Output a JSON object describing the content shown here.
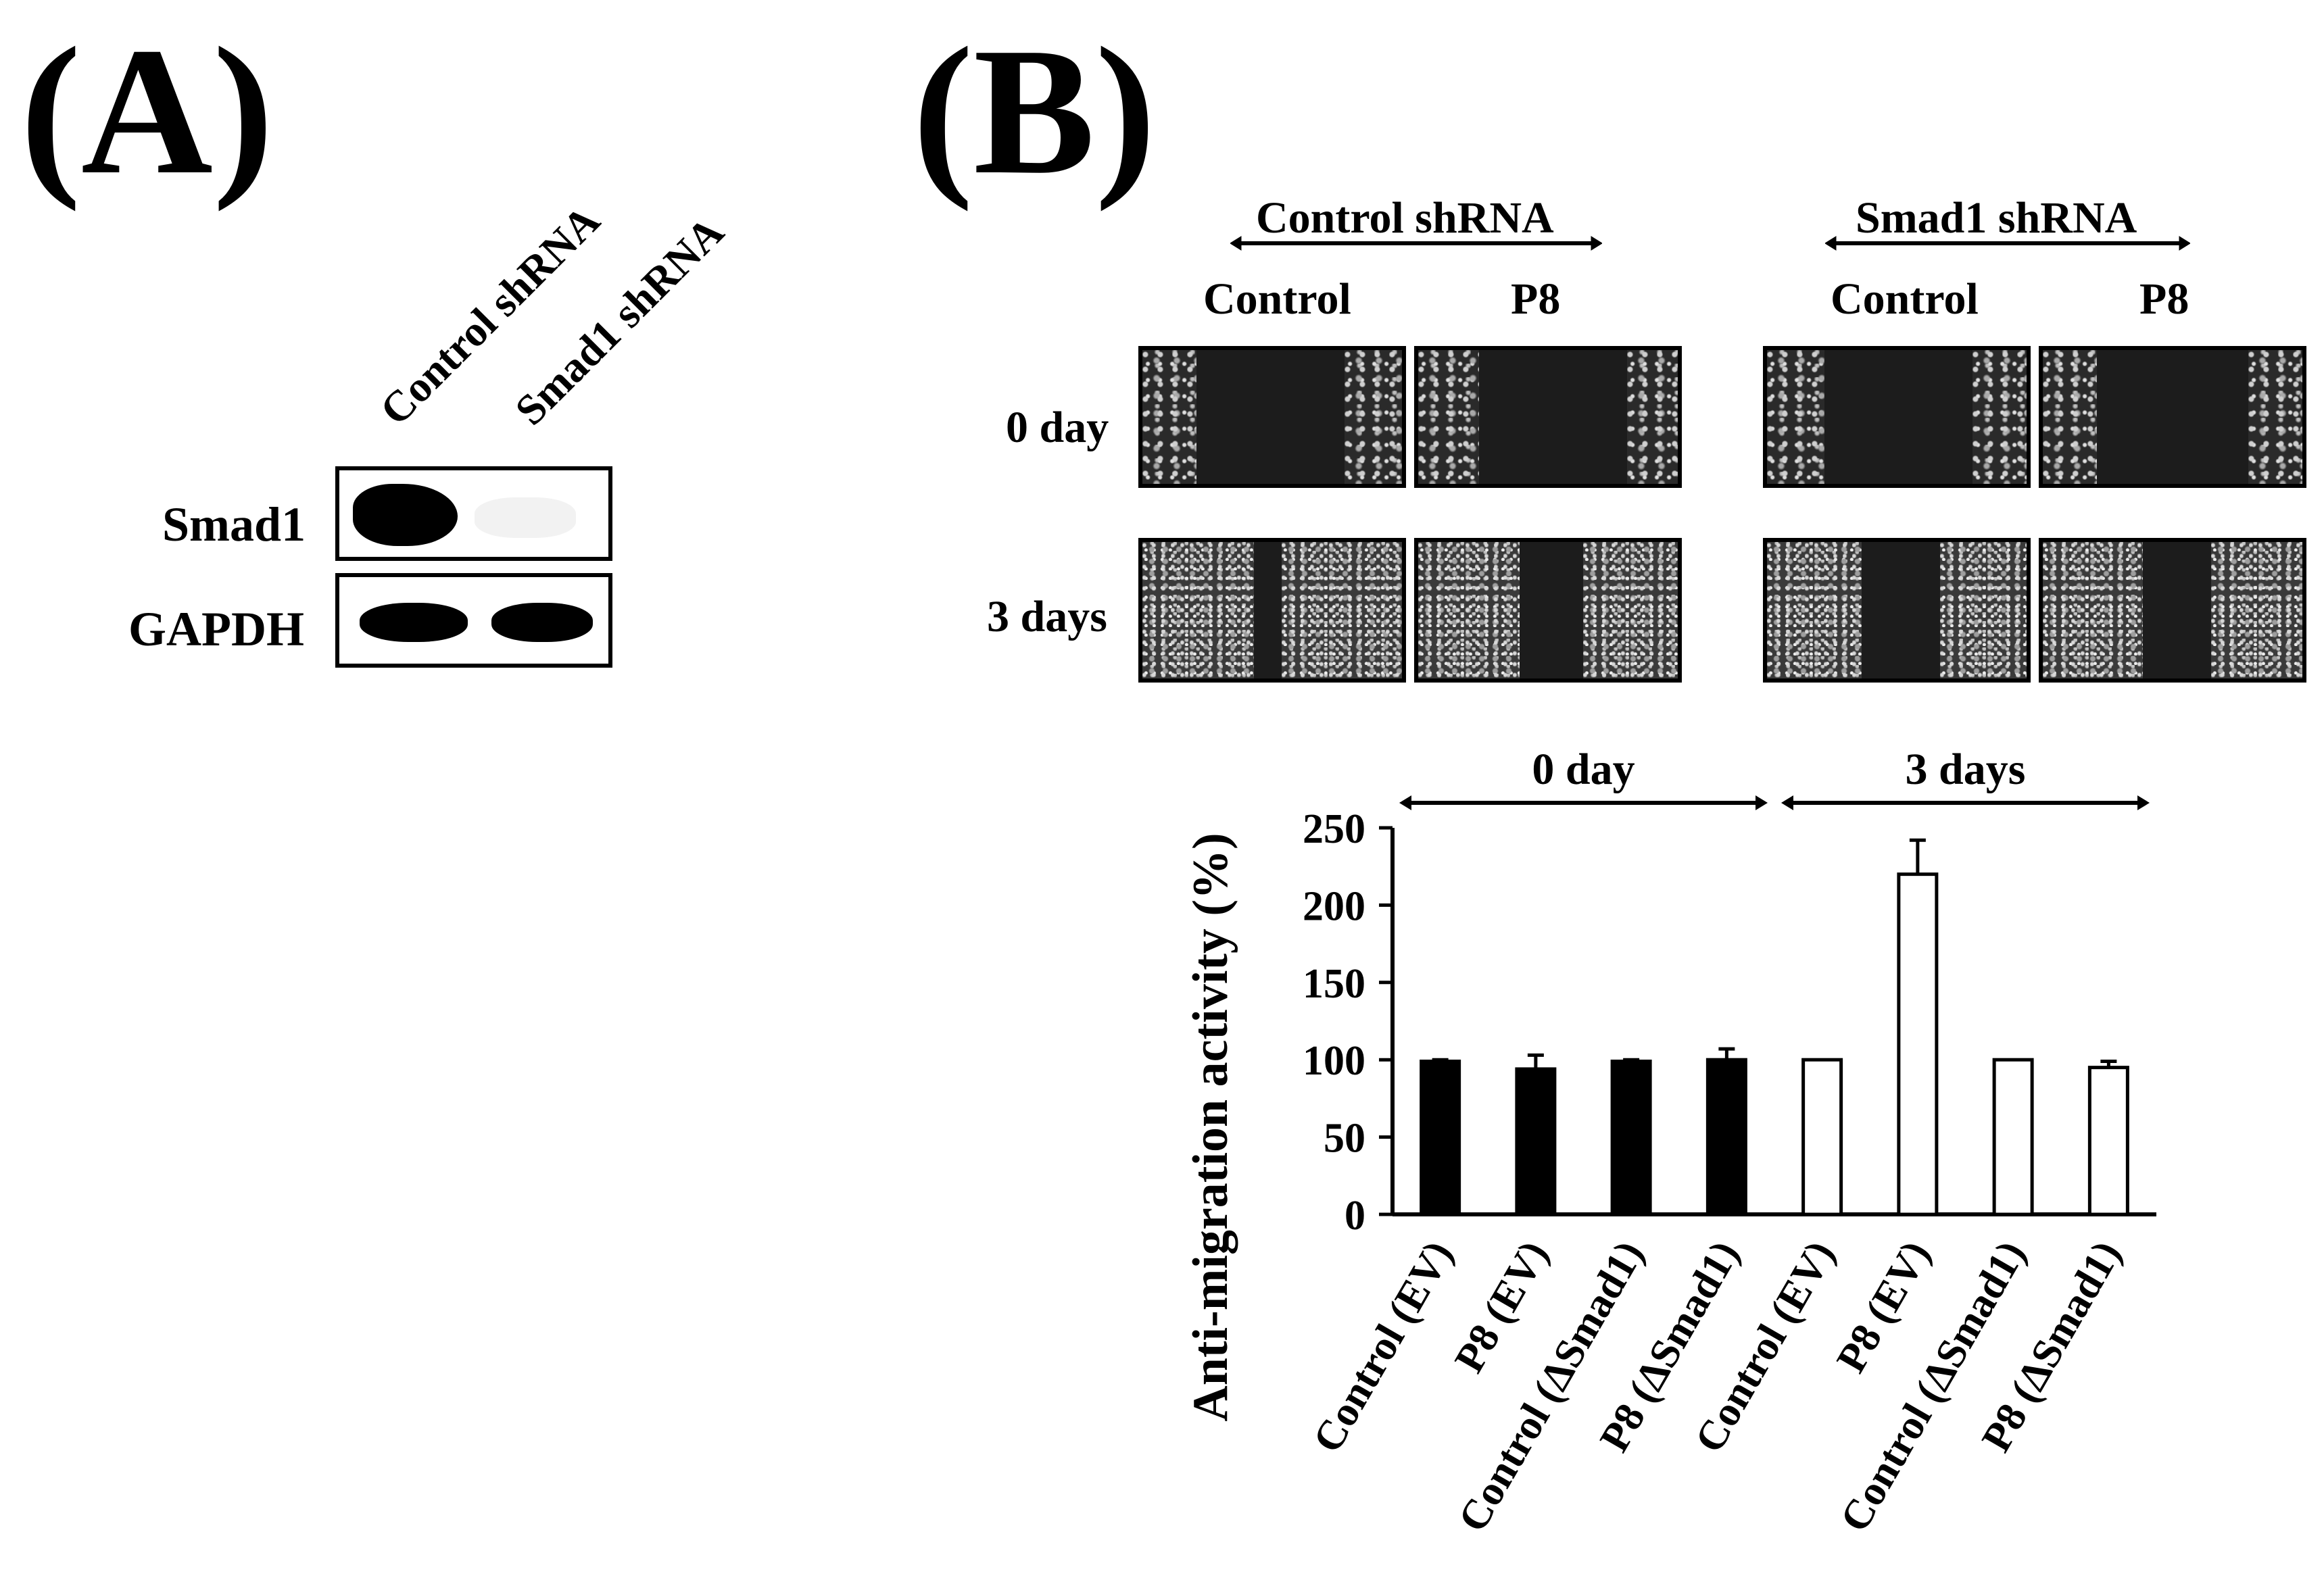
{
  "panels": {
    "a_label": "(A)",
    "b_label": "(B)"
  },
  "western_blot": {
    "lanes": [
      "Control shRNA",
      "Smad1 shRNA"
    ],
    "rows": [
      {
        "label": "Smad1"
      },
      {
        "label": "GAPDH"
      }
    ]
  },
  "scratch_assay": {
    "groups": [
      {
        "label": "Control shRNA",
        "columns": [
          "Control",
          "P8"
        ]
      },
      {
        "label": "Smad1 shRNA",
        "columns": [
          "Control",
          "P8"
        ]
      }
    ],
    "rows": [
      "0 day",
      "3 days"
    ]
  },
  "chart_data": {
    "type": "bar",
    "ylabel": "Anti-migration activity (%)",
    "ylim": [
      0,
      250
    ],
    "yticks": [
      0,
      50,
      100,
      150,
      200,
      250
    ],
    "grid": false,
    "groups": [
      {
        "label": "0 day",
        "fill": "black"
      },
      {
        "label": "3 days",
        "fill": "white"
      }
    ],
    "categories": [
      "Control (EV)",
      "P8 (EV)",
      "Control (ΔSmad1)",
      "P8 (ΔSmad1)",
      "Control (EV)",
      "P8 (EV)",
      "Control (ΔSmad1)",
      "P8 (ΔSmad1)"
    ],
    "values": [
      99,
      94,
      99,
      100,
      100,
      220,
      100,
      95
    ],
    "errors": [
      1,
      9,
      1,
      7,
      0,
      22,
      0,
      4
    ],
    "group_index": [
      0,
      0,
      0,
      0,
      1,
      1,
      1,
      1
    ]
  }
}
